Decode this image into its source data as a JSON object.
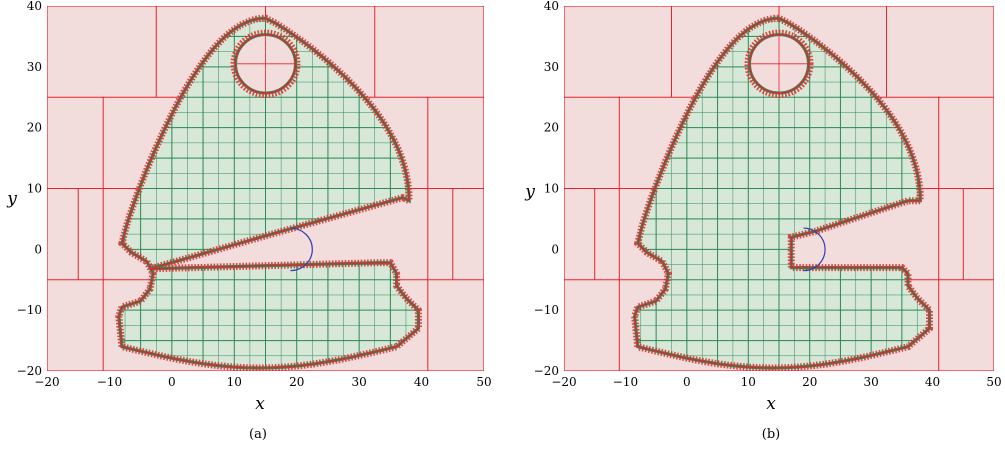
{
  "colors": {
    "background_cell": "#f2dcdc",
    "inside_cell": "#d8e8d8",
    "red_grid": "#e8242a",
    "green_grid": "#2e8a57",
    "boundary": "#e8242a",
    "arc": "#2c3fb0"
  },
  "chart_data": [
    {
      "type": "diagram",
      "caption": "(a)",
      "xlabel": "x",
      "ylabel": "y",
      "xlim": [
        -20,
        50
      ],
      "ylim": [
        -20,
        40
      ],
      "xticks": [
        "−20",
        "−10",
        "0",
        "10",
        "20",
        "30",
        "40",
        "50"
      ],
      "yticks": [
        "−20",
        "−10",
        "0",
        "10",
        "20",
        "30",
        "40"
      ],
      "variant": "slanted-slot"
    },
    {
      "type": "diagram",
      "caption": "(b)",
      "xlabel": "x",
      "ylabel": "y",
      "xlim": [
        -20,
        50
      ],
      "ylim": [
        -20,
        40
      ],
      "xticks": [
        "−20",
        "−10",
        "0",
        "10",
        "20",
        "30",
        "40",
        "50"
      ],
      "yticks": [
        "−20",
        "−10",
        "0",
        "10",
        "20",
        "30",
        "40"
      ],
      "variant": "straight-slot"
    }
  ]
}
